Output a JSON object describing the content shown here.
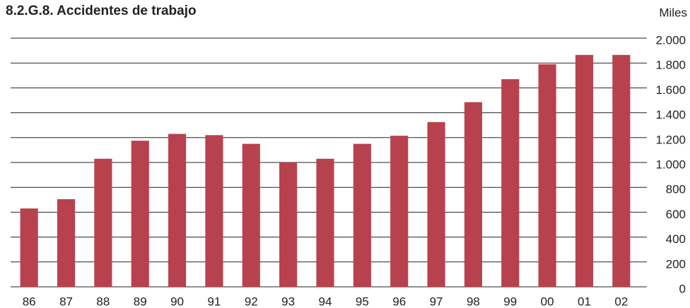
{
  "chart_data": {
    "type": "bar",
    "title": "8.2.G.8. Accidentes de trabajo",
    "y_label": "Miles",
    "categories": [
      "86",
      "87",
      "88",
      "89",
      "90",
      "91",
      "92",
      "93",
      "94",
      "95",
      "96",
      "97",
      "98",
      "99",
      "00",
      "01",
      "02"
    ],
    "values": [
      630,
      705,
      1030,
      1175,
      1230,
      1220,
      1150,
      1000,
      1030,
      1150,
      1215,
      1325,
      1485,
      1670,
      1790,
      1865,
      1865
    ],
    "color": "#b8414e",
    "ylim": [
      0,
      2000
    ],
    "yticks": [
      0,
      200,
      400,
      600,
      800,
      {
        "value": 1000,
        "label": "1.000"
      },
      {
        "value": 1200,
        "label": "1.200"
      },
      {
        "value": 1400,
        "label": "1.400"
      },
      {
        "value": 1600,
        "label": "1.600"
      },
      {
        "value": 1800,
        "label": "1.800"
      },
      {
        "value": 2000,
        "label": "2.000"
      }
    ],
    "grid": true
  }
}
